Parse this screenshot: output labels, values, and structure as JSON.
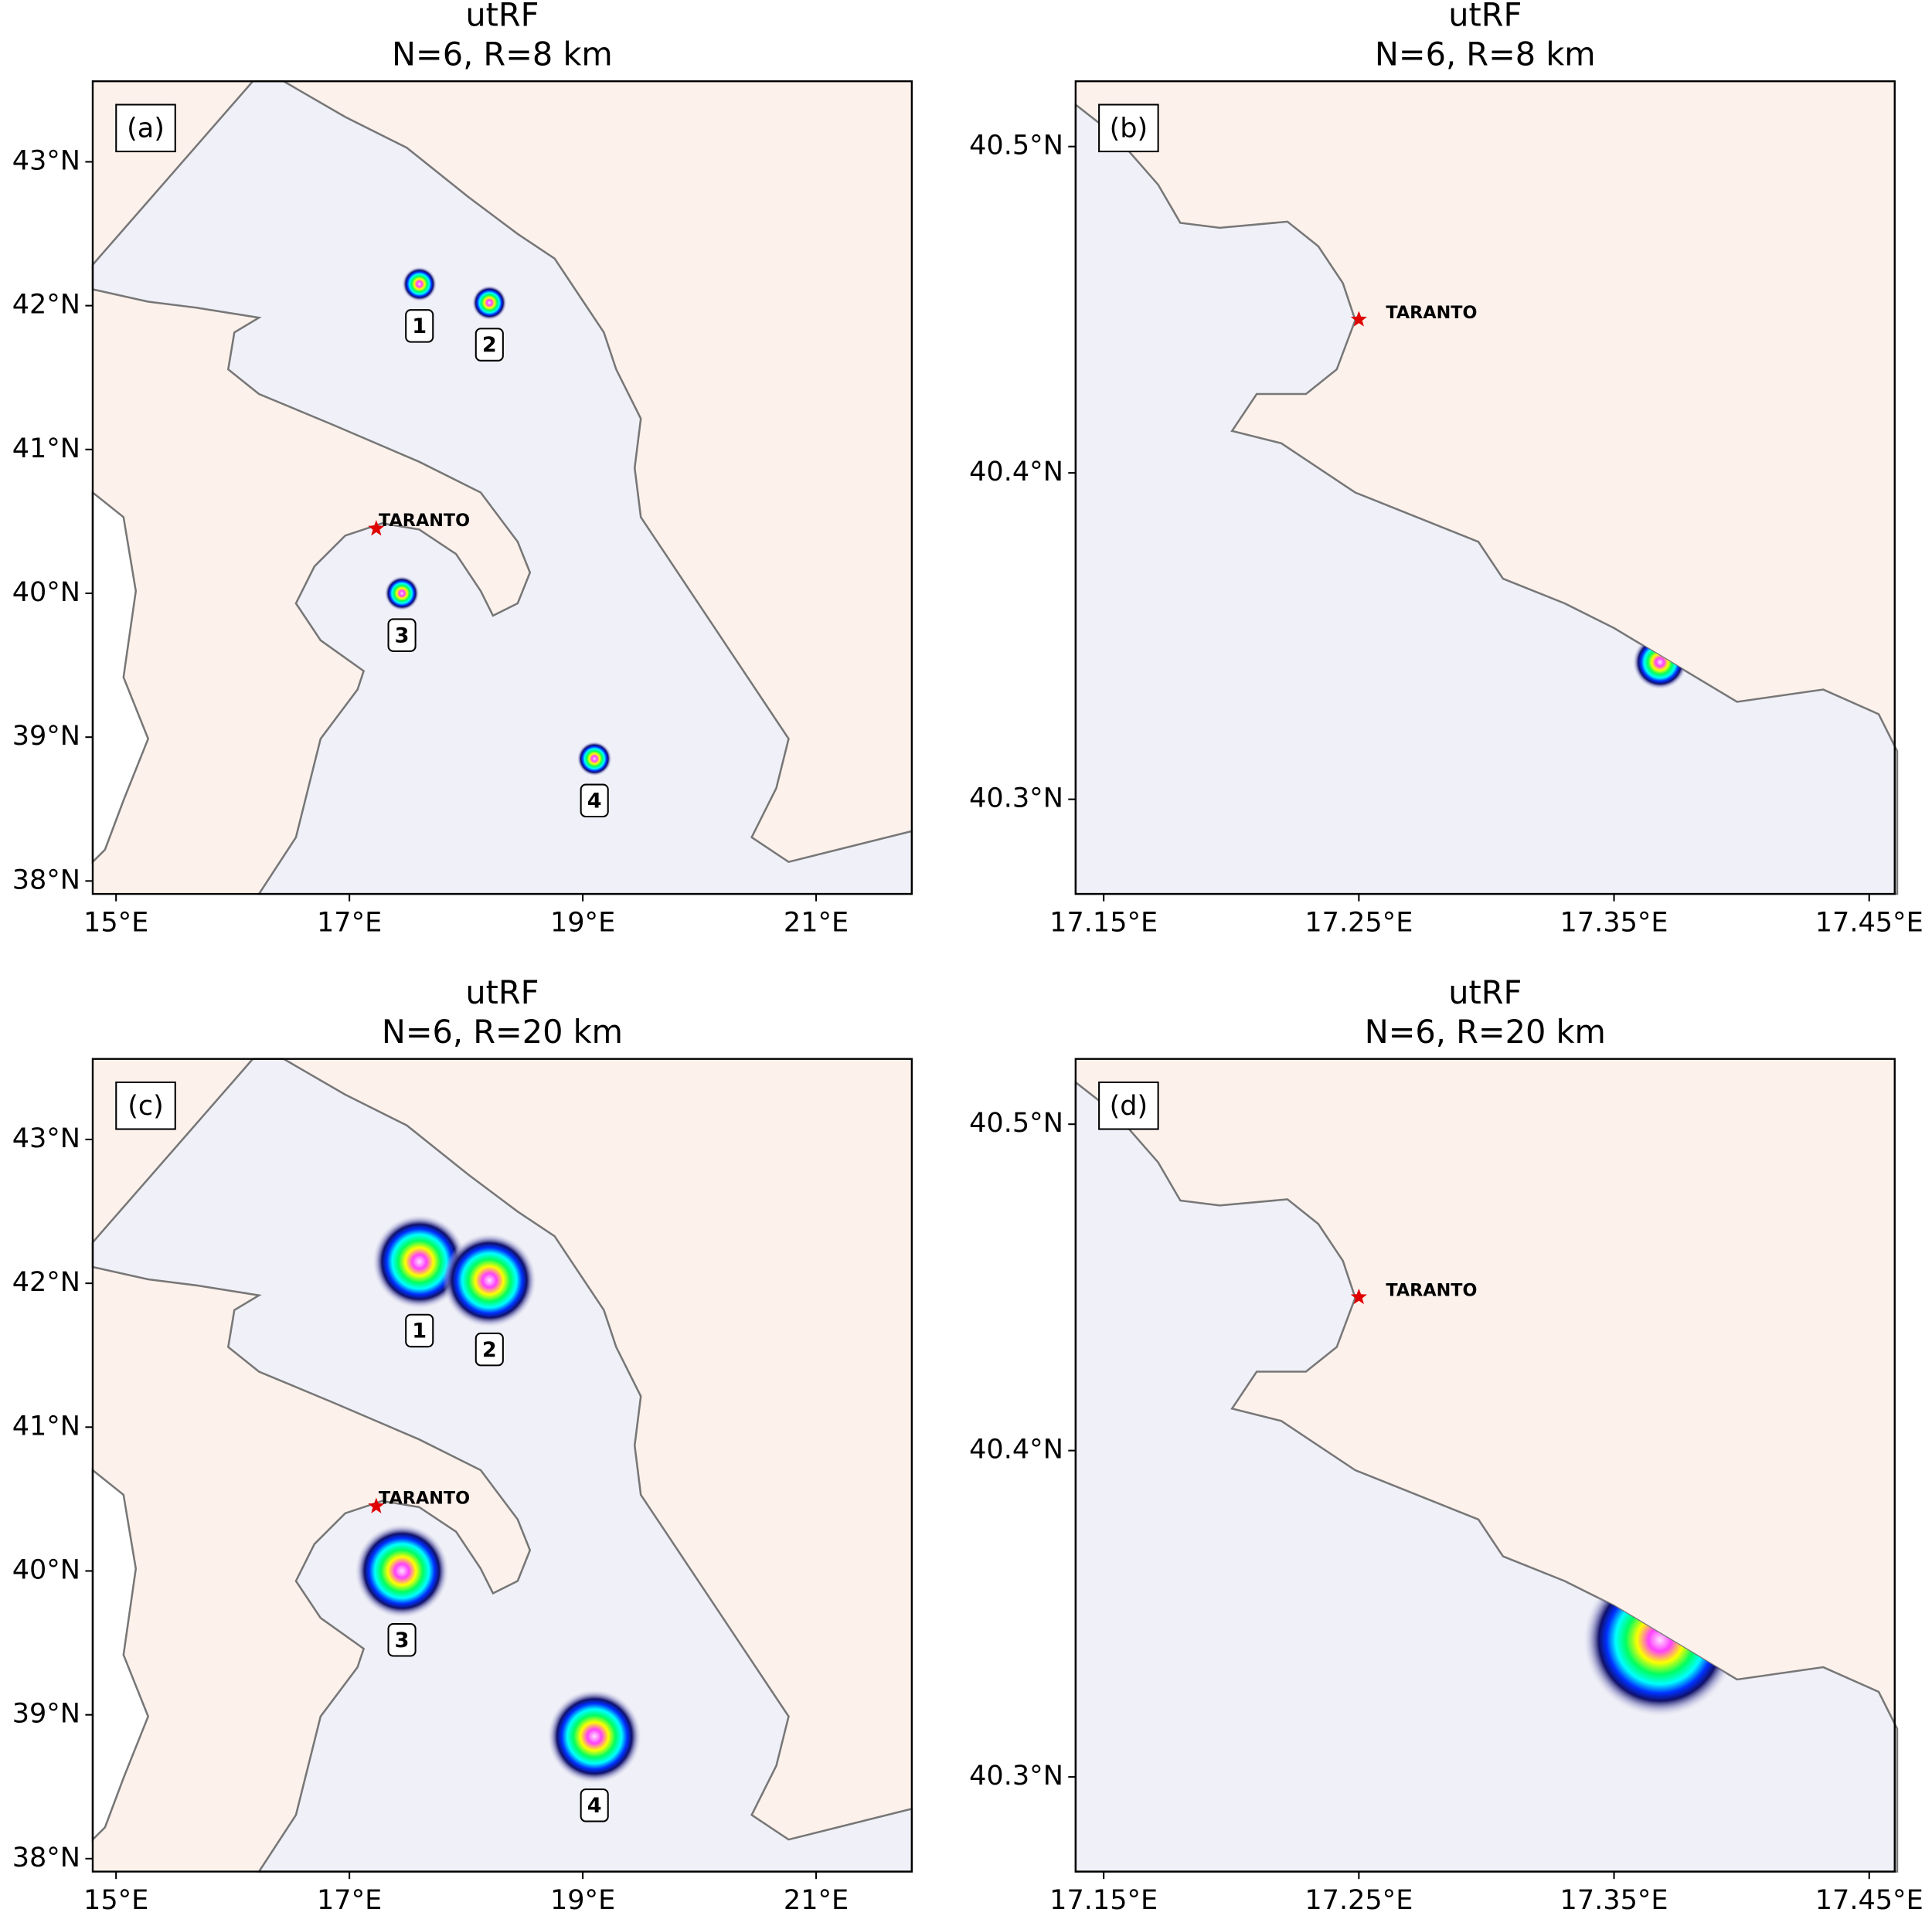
{
  "panels": [
    {
      "title": "utRF",
      "subtitle": "N=6, R=8 km",
      "label": "(a)",
      "city": "TARANTO",
      "sites": [
        "1",
        "2",
        "3",
        "4"
      ],
      "xlim": [
        14.8,
        21.82
      ],
      "ylim": [
        37.91,
        43.56
      ],
      "xticks": [
        {
          "value": 15,
          "label": "15°E"
        },
        {
          "value": 17,
          "label": "17°E"
        },
        {
          "value": 19,
          "label": "19°E"
        },
        {
          "value": 21,
          "label": "21°E"
        }
      ],
      "yticks": [
        {
          "value": 38,
          "label": "38°N"
        },
        {
          "value": 39,
          "label": "39°N"
        },
        {
          "value": 40,
          "label": "40°N"
        },
        {
          "value": 41,
          "label": "41°N"
        },
        {
          "value": 42,
          "label": "42°N"
        },
        {
          "value": 43,
          "label": "43°N"
        }
      ]
    },
    {
      "title": "utRF",
      "subtitle": "N=6, R=8 km",
      "label": "(b)",
      "city": "TARANTO",
      "xlim": [
        17.139,
        17.46
      ],
      "ylim": [
        40.271,
        40.52
      ],
      "xticks": [
        {
          "value": 17.15,
          "label": "17.15°E"
        },
        {
          "value": 17.25,
          "label": "17.25°E"
        },
        {
          "value": 17.35,
          "label": "17.35°E"
        },
        {
          "value": 17.45,
          "label": "17.45°E"
        }
      ],
      "yticks": [
        {
          "value": 40.3,
          "label": "40.3°N"
        },
        {
          "value": 40.4,
          "label": "40.4°N"
        },
        {
          "value": 40.5,
          "label": "40.5°N"
        }
      ]
    },
    {
      "title": "utRF",
      "subtitle": "N=6, R=20 km",
      "label": "(c)",
      "city": "TARANTO",
      "sites": [
        "1",
        "2",
        "3",
        "4"
      ],
      "xlim": [
        14.8,
        21.82
      ],
      "ylim": [
        37.91,
        43.56
      ],
      "xticks": [
        {
          "value": 15,
          "label": "15°E"
        },
        {
          "value": 17,
          "label": "17°E"
        },
        {
          "value": 19,
          "label": "19°E"
        },
        {
          "value": 21,
          "label": "21°E"
        }
      ],
      "yticks": [
        {
          "value": 38,
          "label": "38°N"
        },
        {
          "value": 39,
          "label": "39°N"
        },
        {
          "value": 40,
          "label": "40°N"
        },
        {
          "value": 41,
          "label": "41°N"
        },
        {
          "value": 42,
          "label": "42°N"
        },
        {
          "value": 43,
          "label": "43°N"
        }
      ]
    },
    {
      "title": "utRF",
      "subtitle": "N=6, R=20 km",
      "label": "(d)",
      "city": "TARANTO",
      "xlim": [
        17.139,
        17.46
      ],
      "ylim": [
        40.271,
        40.52
      ],
      "xticks": [
        {
          "value": 17.15,
          "label": "17.15°E"
        },
        {
          "value": 17.25,
          "label": "17.25°E"
        },
        {
          "value": 17.35,
          "label": "17.35°E"
        },
        {
          "value": 17.45,
          "label": "17.45°E"
        }
      ],
      "yticks": [
        {
          "value": 40.3,
          "label": "40.3°N"
        },
        {
          "value": 40.4,
          "label": "40.4°N"
        },
        {
          "value": 40.5,
          "label": "40.5°N"
        }
      ]
    }
  ]
}
